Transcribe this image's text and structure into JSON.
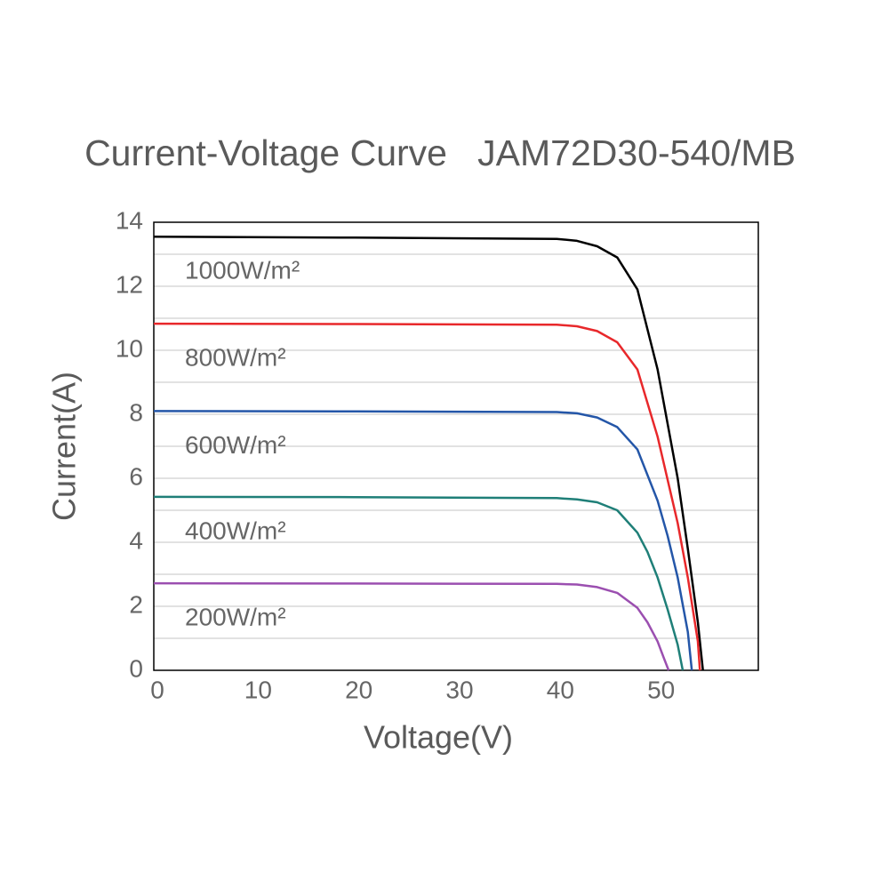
{
  "chart_data": {
    "type": "line",
    "title": "Current-Voltage Curve   JAM72D30-540/MB",
    "xlabel": "Voltage(V)",
    "ylabel": "Current(A)",
    "xlim": [
      0,
      60
    ],
    "xticks": [
      0,
      10,
      20,
      30,
      40,
      50
    ],
    "ylim": [
      0,
      14
    ],
    "yticks": [
      0,
      2,
      4,
      6,
      8,
      10,
      12,
      14
    ],
    "minor_yticks": [
      1,
      3,
      5,
      7,
      9,
      11,
      13
    ],
    "grid": true,
    "series": [
      {
        "name": "1000W/m²",
        "color": "#000000",
        "x": [
          0,
          20,
          40,
          42,
          44,
          46,
          48,
          50,
          52,
          53,
          54,
          54.5
        ],
        "values": [
          13.55,
          13.52,
          13.48,
          13.42,
          13.25,
          12.9,
          11.9,
          9.4,
          6.0,
          3.8,
          1.5,
          0
        ]
      },
      {
        "name": "800W/m²",
        "color": "#e8282b",
        "x": [
          0,
          20,
          40,
          42,
          44,
          46,
          48,
          50,
          52,
          53,
          54,
          54.2
        ],
        "values": [
          10.83,
          10.82,
          10.8,
          10.75,
          10.6,
          10.25,
          9.4,
          7.3,
          4.6,
          2.9,
          0.9,
          0
        ]
      },
      {
        "name": "600W/m²",
        "color": "#2456a8",
        "x": [
          0,
          20,
          40,
          42,
          44,
          46,
          48,
          50,
          51,
          52,
          53,
          53.4
        ],
        "values": [
          8.1,
          8.09,
          8.07,
          8.03,
          7.9,
          7.6,
          6.9,
          5.3,
          4.2,
          2.9,
          1.2,
          0
        ]
      },
      {
        "name": "400W/m²",
        "color": "#1f7f78",
        "x": [
          0,
          20,
          40,
          42,
          44,
          46,
          48,
          49,
          50,
          51,
          52,
          52.5
        ],
        "values": [
          5.42,
          5.41,
          5.38,
          5.34,
          5.25,
          5.0,
          4.3,
          3.7,
          2.9,
          1.9,
          0.8,
          0
        ]
      },
      {
        "name": "200W/m²",
        "color": "#9b4fb0",
        "x": [
          0,
          20,
          40,
          42,
          44,
          46,
          48,
          49,
          50,
          50.6,
          51.1
        ],
        "values": [
          2.72,
          2.71,
          2.7,
          2.68,
          2.6,
          2.42,
          1.95,
          1.5,
          0.9,
          0.4,
          0
        ]
      }
    ]
  }
}
